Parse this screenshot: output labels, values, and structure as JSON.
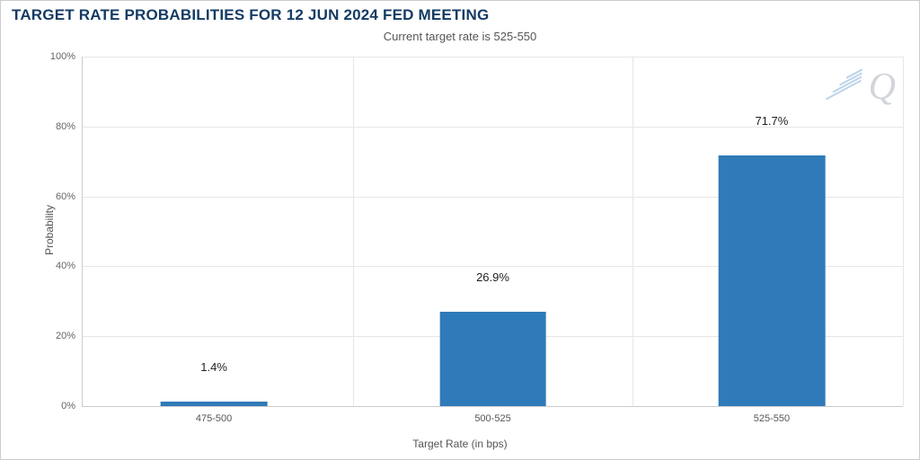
{
  "chart": {
    "type": "bar",
    "title": "TARGET RATE PROBABILITIES FOR 12 JUN 2024 FED MEETING",
    "subtitle": "Current target rate is 525-550",
    "y_axis_title": "Probability",
    "x_axis_title": "Target Rate (in bps)",
    "title_color": "#143b64",
    "title_fontsize": 17,
    "subtitle_fontsize": 13,
    "axis_title_fontsize": 12,
    "tick_fontsize": 11,
    "bar_label_fontsize": 13,
    "background_color": "#ffffff",
    "border_color": "#cccccc",
    "grid_color": "#e6e6e6",
    "bar_color": "#2f7ab8",
    "text_color": "#555555",
    "ylim": [
      0,
      100
    ],
    "ytick_step": 20,
    "yticks": [
      {
        "value": 0,
        "label": "0%"
      },
      {
        "value": 20,
        "label": "20%"
      },
      {
        "value": 40,
        "label": "40%"
      },
      {
        "value": 60,
        "label": "60%"
      },
      {
        "value": 80,
        "label": "80%"
      },
      {
        "value": 100,
        "label": "100%"
      }
    ],
    "categories": [
      "475-500",
      "500-525",
      "525-550"
    ],
    "values": [
      1.4,
      26.9,
      71.7
    ],
    "value_labels": [
      "1.4%",
      "26.9%",
      "71.7%"
    ],
    "bar_positions_pct": [
      16,
      50,
      84
    ],
    "bar_width_pct": 13,
    "vgrid_positions_pct": [
      33,
      67,
      100
    ],
    "watermark_text": "Q",
    "watermark_color": "#d2d6da"
  }
}
